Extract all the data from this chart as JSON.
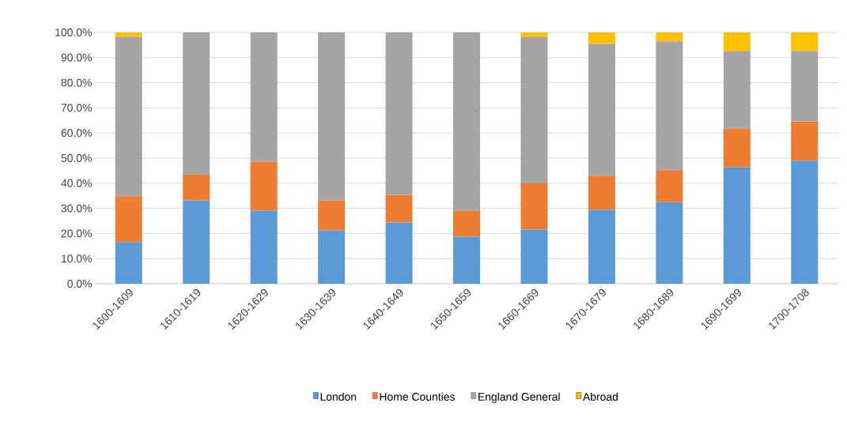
{
  "chart_data": {
    "type": "bar",
    "stacked": true,
    "categories": [
      "1600-1609",
      "1610-1619",
      "1620-1629",
      "1630-1639",
      "1640-1649",
      "1650-1659",
      "1660-1669",
      "1670-1679",
      "1680-1689",
      "1690-1699",
      "1700-1708"
    ],
    "series": [
      {
        "name": "London",
        "color": "#5b9bd5",
        "values": [
          16.6,
          33.2,
          29.1,
          21.2,
          24.4,
          18.7,
          21.5,
          29.5,
          32.5,
          46.3,
          49.0
        ]
      },
      {
        "name": "Home Counties",
        "color": "#ed7d31",
        "values": [
          18.2,
          10.2,
          19.5,
          12.0,
          11.0,
          10.3,
          18.4,
          13.5,
          12.7,
          15.4,
          15.6
        ]
      },
      {
        "name": "England General",
        "color": "#a5a5a5",
        "values": [
          63.4,
          56.6,
          51.4,
          66.8,
          64.6,
          71.0,
          58.3,
          52.4,
          51.2,
          30.9,
          28.0
        ]
      },
      {
        "name": "Abroad",
        "color": "#ffc000",
        "values": [
          1.8,
          0,
          0,
          0,
          0,
          0,
          1.8,
          4.6,
          3.6,
          7.4,
          7.4
        ]
      }
    ],
    "ylim": [
      0,
      100
    ],
    "yticks": [
      {
        "value": 0,
        "label": "0.0%"
      },
      {
        "value": 10,
        "label": "10.0%"
      },
      {
        "value": 20,
        "label": "20.0%"
      },
      {
        "value": 30,
        "label": "30.0%"
      },
      {
        "value": 40,
        "label": "40.0%"
      },
      {
        "value": 50,
        "label": "50.0%"
      },
      {
        "value": 60,
        "label": "60.0%"
      },
      {
        "value": 70,
        "label": "70.0%"
      },
      {
        "value": 80,
        "label": "80.0%"
      },
      {
        "value": 90,
        "label": "90.0%"
      },
      {
        "value": 100,
        "label": "100.0%"
      }
    ],
    "grid": "y",
    "legend": "bottom"
  }
}
